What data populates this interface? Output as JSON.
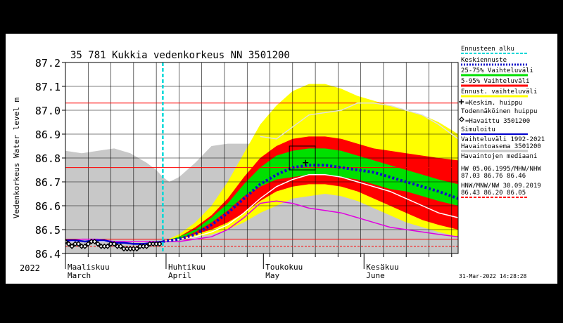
{
  "chart_data": {
    "type": "area",
    "title": "35 781 Kukkia vedenkorkeus NN 3501200",
    "ylabel": "Vedenkorkeus Water level m",
    "ylim": [
      86.4,
      87.2
    ],
    "y_ticks": [
      "86.4",
      "86.5",
      "86.6",
      "86.7",
      "86.8",
      "86.9",
      "87.0",
      "87.1",
      "87.2"
    ],
    "x_month_labels": [
      {
        "fi": "Maaliskuu",
        "en": "March",
        "day": 0
      },
      {
        "fi": "Huhtikuu",
        "en": "April",
        "day": 31
      },
      {
        "fi": "Toukokuu",
        "en": "May",
        "day": 61
      },
      {
        "fi": "Kesäkuu",
        "en": "June",
        "day": 92
      }
    ],
    "year_label": "2022",
    "timestamp": "31-Mar-2022 14:28:28",
    "x_range_days": [
      0,
      121
    ],
    "forecast_start_day": 30,
    "reference_lines": [
      87.03,
      86.76,
      86.46,
      86.43
    ],
    "legend": [
      {
        "label": "Ennusteen alku",
        "color": "#00d8d8",
        "style": "dash"
      },
      {
        "label": "Keskiennuste",
        "color": "#1010c8",
        "style": "dot"
      },
      {
        "label": "25-75% Vaihteluväli",
        "color": "#00e000",
        "style": "band"
      },
      {
        "label": "5-95% Vaihteluväli",
        "color": "#ff0000",
        "style": "band"
      },
      {
        "label": "Ennust. vaihteluväli",
        "color": "#ffff00",
        "style": "band"
      },
      {
        "label": "=Keskim. huippu",
        "color": "#000000",
        "style": "plus"
      },
      {
        "label": "Todennäköinen huippu",
        "color": "#000000",
        "style": "box"
      },
      {
        "label": "=Havaittu 3501200",
        "color": "#000000",
        "style": "diamond"
      },
      {
        "label": "Simuloitu",
        "color": "#0000cc",
        "style": "solid"
      },
      {
        "label": "Vaihteluväli 1992-2021 Havaintoasema 3501200",
        "color": "#c8c8c8",
        "style": "band"
      },
      {
        "label": "Havaintojen mediaani",
        "color": "#ffffff",
        "style": "solid"
      },
      {
        "label": "HW 05.06.1995/MHW/NHW 87.03 86.76 86.46",
        "color": "#ff0000",
        "style": "none"
      },
      {
        "label": "HNW/MNW/NW 30.09.2019 86.43 86.20 86.05",
        "color": "#ff0000",
        "style": "dash"
      }
    ],
    "series": [
      {
        "name": "Vaihteluväli 1992-2021",
        "kind": "band",
        "color": "#c8c8c8",
        "x": [
          0,
          5,
          10,
          15,
          20,
          25,
          28,
          30,
          32,
          35,
          40,
          45,
          50,
          55,
          60,
          65,
          70,
          75,
          80,
          85,
          90,
          95,
          100,
          105,
          110,
          115,
          121
        ],
        "lower": [
          86.4,
          86.4,
          86.4,
          86.4,
          86.4,
          86.4,
          86.4,
          86.4,
          86.4,
          86.4,
          86.4,
          86.4,
          86.4,
          86.4,
          86.4,
          86.4,
          86.4,
          86.4,
          86.4,
          86.4,
          86.4,
          86.4,
          86.4,
          86.4,
          86.4,
          86.4,
          86.4
        ],
        "upper": [
          86.83,
          86.82,
          86.83,
          86.84,
          86.82,
          86.78,
          86.75,
          86.72,
          86.7,
          86.72,
          86.78,
          86.85,
          86.86,
          86.86,
          86.86,
          86.86,
          86.86,
          86.86,
          86.86,
          86.86,
          86.86,
          86.86,
          86.86,
          86.86,
          86.86,
          86.86,
          86.86
        ]
      },
      {
        "name": "Ennust. vaihteluväli",
        "kind": "band",
        "color": "#ffff00",
        "x": [
          30,
          35,
          40,
          45,
          50,
          55,
          60,
          65,
          70,
          75,
          80,
          85,
          90,
          95,
          100,
          105,
          110,
          115,
          121
        ],
        "lower": [
          86.45,
          86.46,
          86.47,
          86.48,
          86.5,
          86.53,
          86.57,
          86.6,
          86.63,
          86.64,
          86.65,
          86.64,
          86.62,
          86.59,
          86.56,
          86.53,
          86.51,
          86.49,
          86.47
        ],
        "upper": [
          86.45,
          86.48,
          86.53,
          86.6,
          86.7,
          86.82,
          86.94,
          87.02,
          87.08,
          87.11,
          87.11,
          87.09,
          87.06,
          87.04,
          87.02,
          87.0,
          86.98,
          86.95,
          86.9
        ]
      },
      {
        "name": "5-95% Vaihteluväli",
        "kind": "band",
        "color": "#ff0000",
        "x": [
          30,
          35,
          40,
          45,
          50,
          55,
          60,
          65,
          70,
          75,
          80,
          85,
          90,
          95,
          100,
          105,
          110,
          115,
          121
        ],
        "lower": [
          86.45,
          86.46,
          86.48,
          86.5,
          86.53,
          86.57,
          86.62,
          86.66,
          86.68,
          86.69,
          86.69,
          86.68,
          86.66,
          86.63,
          86.6,
          86.57,
          86.54,
          86.52,
          86.5
        ],
        "upper": [
          86.45,
          86.47,
          86.51,
          86.56,
          86.63,
          86.72,
          86.8,
          86.85,
          86.88,
          86.89,
          86.89,
          86.88,
          86.86,
          86.84,
          86.83,
          86.82,
          86.81,
          86.8,
          86.79
        ]
      },
      {
        "name": "25-75% Vaihteluväli",
        "kind": "band",
        "color": "#00e000",
        "x": [
          30,
          35,
          40,
          45,
          50,
          55,
          60,
          65,
          70,
          75,
          80,
          85,
          90,
          95,
          100,
          105,
          110,
          115,
          121
        ],
        "lower": [
          86.45,
          86.46,
          86.49,
          86.53,
          86.58,
          86.64,
          86.68,
          86.71,
          86.72,
          86.73,
          86.73,
          86.72,
          86.71,
          86.69,
          86.67,
          86.66,
          86.64,
          86.62,
          86.6
        ],
        "upper": [
          86.45,
          86.47,
          86.5,
          86.55,
          86.61,
          86.69,
          86.76,
          86.81,
          86.83,
          86.84,
          86.84,
          86.83,
          86.81,
          86.79,
          86.77,
          86.75,
          86.73,
          86.71,
          86.69
        ]
      },
      {
        "name": "Havaintojen mediaani",
        "kind": "line",
        "color": "#ffffff",
        "x": [
          0,
          5,
          10,
          15,
          20,
          25,
          30,
          35,
          40,
          45,
          50,
          55,
          60,
          65,
          70,
          75,
          80,
          85,
          90,
          95,
          100,
          105,
          110,
          115,
          121
        ],
        "y": [
          86.45,
          86.45,
          86.45,
          86.45,
          86.45,
          86.45,
          86.45,
          86.46,
          86.47,
          86.49,
          86.52,
          86.57,
          86.63,
          86.68,
          86.71,
          86.73,
          86.73,
          86.72,
          86.7,
          86.68,
          86.66,
          86.63,
          86.6,
          86.57,
          86.55
        ]
      },
      {
        "name": "Light grey line",
        "kind": "line",
        "color": "#e0e0e0",
        "x": [
          60,
          65,
          70,
          75,
          80,
          85,
          90,
          95,
          100,
          105,
          110,
          115,
          121
        ],
        "y": [
          86.89,
          86.88,
          86.93,
          86.98,
          86.99,
          87.0,
          87.03,
          87.03,
          87.02,
          87.0,
          86.98,
          86.94,
          86.88
        ]
      },
      {
        "name": "Magenta line",
        "kind": "line",
        "color": "#e000e0",
        "x": [
          0,
          5,
          10,
          15,
          20,
          25,
          30,
          35,
          40,
          45,
          50,
          55,
          60,
          65,
          70,
          75,
          80,
          85,
          90,
          95,
          100,
          105,
          110,
          115,
          121
        ],
        "y": [
          86.45,
          86.46,
          86.46,
          86.45,
          86.45,
          86.45,
          86.45,
          86.45,
          86.46,
          86.47,
          86.5,
          86.55,
          86.61,
          86.62,
          86.61,
          86.59,
          86.58,
          86.57,
          86.55,
          86.53,
          86.51,
          86.5,
          86.49,
          86.48,
          86.47
        ]
      },
      {
        "name": "Keskiennuste",
        "kind": "dotted",
        "color": "#1010c8",
        "x": [
          30,
          35,
          40,
          45,
          50,
          55,
          60,
          65,
          70,
          75,
          80,
          85,
          90,
          95,
          100,
          105,
          110,
          115,
          121
        ],
        "y": [
          86.45,
          86.46,
          86.48,
          86.52,
          86.57,
          86.63,
          86.69,
          86.73,
          86.76,
          86.77,
          86.77,
          86.76,
          86.75,
          86.74,
          86.72,
          86.7,
          86.68,
          86.66,
          86.63
        ]
      },
      {
        "name": "Simuloitu",
        "kind": "line",
        "color": "#0000cc",
        "x": [
          0,
          3,
          6,
          9,
          12,
          15,
          18,
          21,
          24,
          27,
          30
        ],
        "y": [
          86.455,
          86.455,
          86.45,
          86.455,
          86.455,
          86.445,
          86.445,
          86.44,
          86.44,
          86.445,
          86.45
        ]
      },
      {
        "name": "Havaittu 3501200",
        "kind": "markers",
        "color": "#000000",
        "x": [
          0,
          1,
          2,
          3,
          4,
          5,
          6,
          7,
          8,
          9,
          10,
          11,
          12,
          13,
          14,
          15,
          16,
          17,
          18,
          19,
          20,
          21,
          22,
          23,
          24,
          25,
          26,
          27,
          28,
          29
        ],
        "y": [
          86.45,
          86.44,
          86.43,
          86.44,
          86.44,
          86.43,
          86.43,
          86.44,
          86.45,
          86.45,
          86.44,
          86.43,
          86.43,
          86.43,
          86.44,
          86.44,
          86.43,
          86.43,
          86.42,
          86.42,
          86.42,
          86.42,
          86.42,
          86.43,
          86.43,
          86.43,
          86.44,
          86.44,
          86.44,
          86.44
        ]
      }
    ],
    "peak": {
      "x": 74,
      "y": 86.78
    },
    "probable_peak_box": {
      "x0": 69,
      "x1": 77,
      "y0": 86.75,
      "y1": 86.85
    }
  }
}
